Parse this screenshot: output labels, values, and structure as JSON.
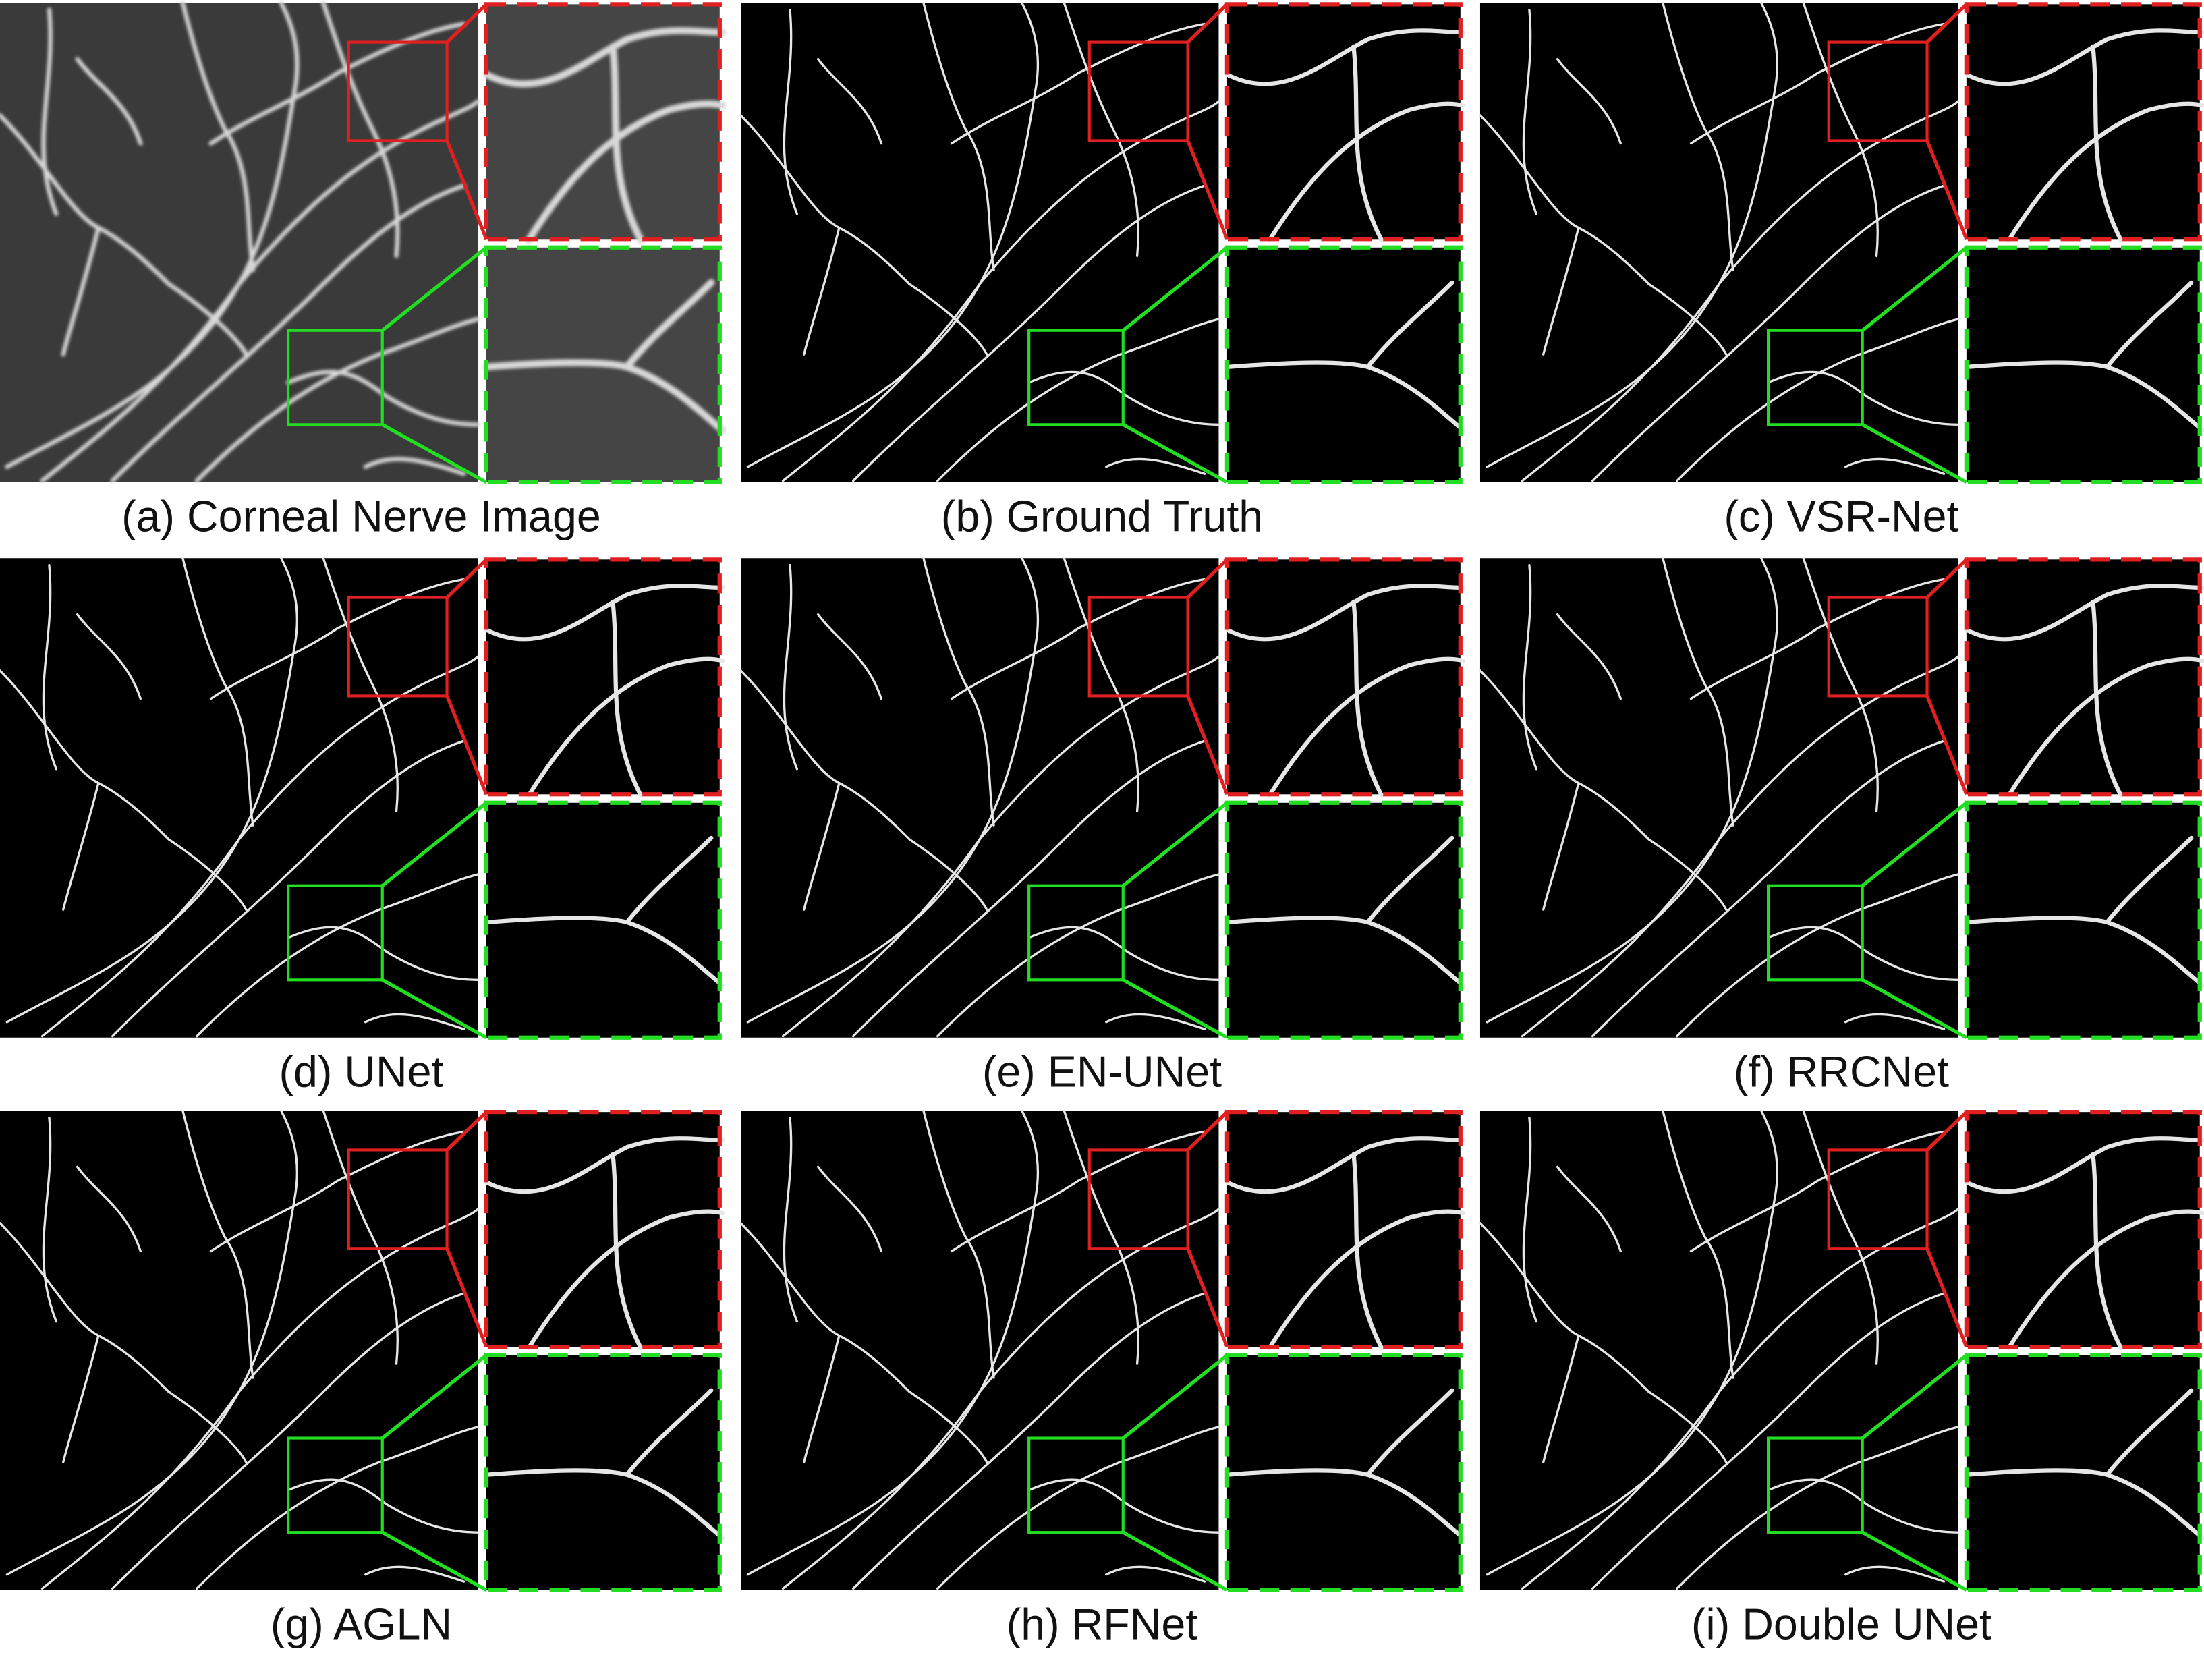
{
  "panels": [
    {
      "caption": "(a) Corneal Nerve Image"
    },
    {
      "caption": "(b) Ground Truth"
    },
    {
      "caption": "(c) VSR-Net"
    },
    {
      "caption": "(d) UNet"
    },
    {
      "caption": "(e) EN-UNet"
    },
    {
      "caption": "(f) RRCNet"
    },
    {
      "caption": "(g) AGLN"
    },
    {
      "caption": "(h) RFNet"
    },
    {
      "caption": "(i) Double UNet"
    }
  ]
}
